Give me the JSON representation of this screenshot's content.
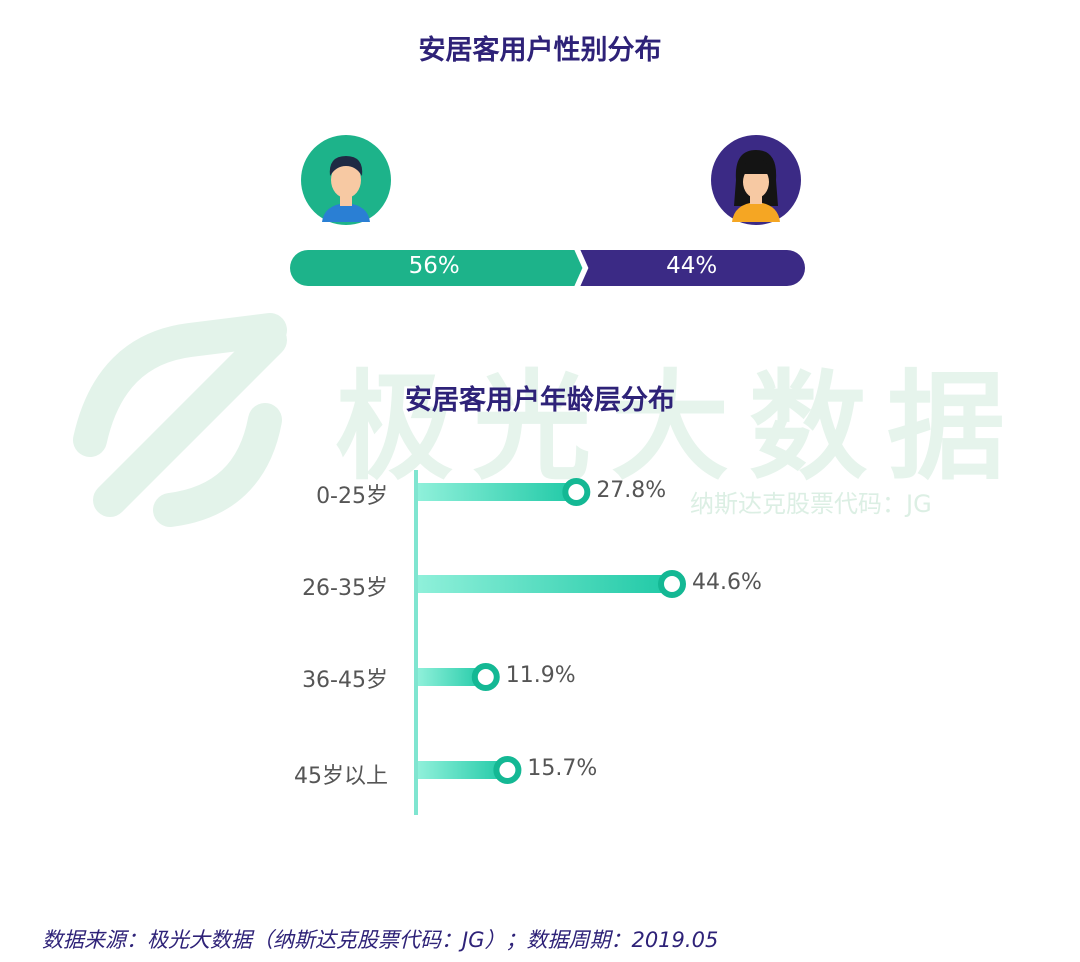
{
  "gender_title": "安居客用户性别分布",
  "age_title": "安居客用户年龄层分布",
  "watermark": {
    "logo_text": "极光大数据",
    "sub_text": "纳斯达克股票代码：JG"
  },
  "source_note": "数据来源：极光大数据（纳斯达克股票代码：JG）；数据周期：2019.05",
  "colors": {
    "male": "#1db38a",
    "female": "#3b2a85",
    "age_bar": "#2ed8b6",
    "title": "#2e2278"
  },
  "chart_data": [
    {
      "type": "bar",
      "title": "安居客用户性别分布",
      "categories": [
        "男",
        "女"
      ],
      "values": [
        56,
        44
      ],
      "value_labels": [
        "56%",
        "44%"
      ]
    },
    {
      "type": "bar",
      "title": "安居客用户年龄层分布",
      "categories": [
        "0-25岁",
        "26-35岁",
        "36-45岁",
        "45岁以上"
      ],
      "values": [
        27.8,
        44.6,
        11.9,
        15.7
      ],
      "value_labels": [
        "27.8%",
        "44.6%",
        "11.9%",
        "15.7%"
      ]
    }
  ]
}
